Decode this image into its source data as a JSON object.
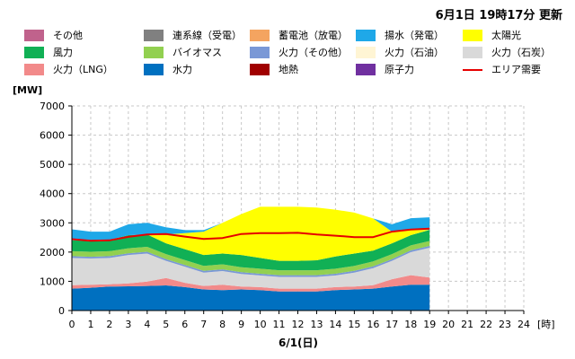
{
  "header": {
    "updated": "6月1日 19時17分 更新"
  },
  "chart_data": {
    "type": "area",
    "stacked": true,
    "ylabel": "[MW]",
    "xlabel": "6/1(日)",
    "xunit": "[時]",
    "xlim": [
      0,
      24
    ],
    "ylim": [
      0,
      7000
    ],
    "xticks": [
      0,
      1,
      2,
      3,
      4,
      5,
      6,
      7,
      8,
      9,
      10,
      11,
      12,
      13,
      14,
      15,
      16,
      17,
      18,
      19,
      20,
      21,
      22,
      23,
      24
    ],
    "yticks": [
      0,
      1000,
      2000,
      3000,
      4000,
      5000,
      6000,
      7000
    ],
    "grid": true,
    "legend_position": "top",
    "legend": [
      {
        "label": "その他",
        "color": "#C0628C"
      },
      {
        "label": "連系線（受電）",
        "color": "#808080"
      },
      {
        "label": "蓄電池（放電）",
        "color": "#F4A460"
      },
      {
        "label": "揚水（発電）",
        "color": "#1FA8E8"
      },
      {
        "label": "太陽光",
        "color": "#FFFF00"
      },
      {
        "label": "風力",
        "color": "#11B055"
      },
      {
        "label": "バイオマス",
        "color": "#92D050"
      },
      {
        "label": "火力（その他）",
        "color": "#7A98D6"
      },
      {
        "label": "火力（石油）",
        "color": "#FFF5D4"
      },
      {
        "label": "火力（石炭）",
        "color": "#D9D9D9"
      },
      {
        "label": "火力（LNG）",
        "color": "#F28A8A"
      },
      {
        "label": "水力",
        "color": "#0070C0"
      },
      {
        "label": "地熱",
        "color": "#A00000"
      },
      {
        "label": "原子力",
        "color": "#7030A0"
      },
      {
        "label": "エリア需要",
        "color": "#E60000"
      }
    ],
    "x": [
      0,
      1,
      2,
      3,
      4,
      5,
      6,
      7,
      8,
      9,
      10,
      11,
      12,
      13,
      14,
      15,
      16,
      17,
      18,
      19
    ],
    "series": [
      {
        "name": "水力",
        "color": "#0070C0",
        "values": [
          750,
          780,
          820,
          830,
          840,
          860,
          800,
          720,
          700,
          720,
          700,
          650,
          650,
          650,
          700,
          720,
          750,
          820,
          880,
          880
        ]
      },
      {
        "name": "火力（LNG）",
        "color": "#F28A8A",
        "values": [
          120,
          100,
          80,
          100,
          150,
          250,
          150,
          120,
          180,
          100,
          100,
          100,
          100,
          100,
          100,
          100,
          120,
          250,
          330,
          250
        ]
      },
      {
        "name": "火力（石炭）",
        "color": "#D9D9D9",
        "values": [
          930,
          900,
          900,
          970,
          960,
          590,
          550,
          460,
          470,
          430,
          400,
          400,
          400,
          400,
          400,
          480,
          580,
          630,
          790,
          1020
        ]
      },
      {
        "name": "火力（その他）",
        "color": "#7A98D6",
        "values": [
          60,
          60,
          60,
          60,
          60,
          60,
          60,
          60,
          60,
          60,
          60,
          60,
          60,
          60,
          60,
          60,
          60,
          60,
          60,
          60
        ]
      },
      {
        "name": "バイオマス",
        "color": "#92D050",
        "values": [
          170,
          170,
          170,
          170,
          170,
          170,
          170,
          170,
          170,
          170,
          170,
          170,
          170,
          170,
          170,
          170,
          170,
          170,
          170,
          170
        ]
      },
      {
        "name": "風力",
        "color": "#11B055",
        "values": [
          370,
          370,
          390,
          450,
          420,
          370,
          370,
          370,
          370,
          420,
          370,
          320,
          320,
          340,
          420,
          420,
          370,
          370,
          350,
          380
        ]
      },
      {
        "name": "太陽光",
        "color": "#FFFF00",
        "values": [
          0,
          0,
          0,
          0,
          0,
          300,
          550,
          800,
          1050,
          1400,
          1750,
          1850,
          1850,
          1800,
          1600,
          1400,
          1100,
          400,
          180,
          0
        ]
      },
      {
        "name": "揚水（発電）",
        "color": "#1FA8E8",
        "values": [
          380,
          320,
          280,
          370,
          400,
          250,
          100,
          50,
          0,
          0,
          0,
          0,
          0,
          0,
          0,
          0,
          0,
          250,
          400,
          430
        ]
      }
    ],
    "line_series": {
      "name": "エリア需要",
      "color": "#E60000",
      "values": [
        2440,
        2390,
        2400,
        2520,
        2600,
        2620,
        2530,
        2450,
        2480,
        2620,
        2650,
        2650,
        2660,
        2600,
        2560,
        2510,
        2510,
        2700,
        2770,
        2800
      ]
    }
  }
}
